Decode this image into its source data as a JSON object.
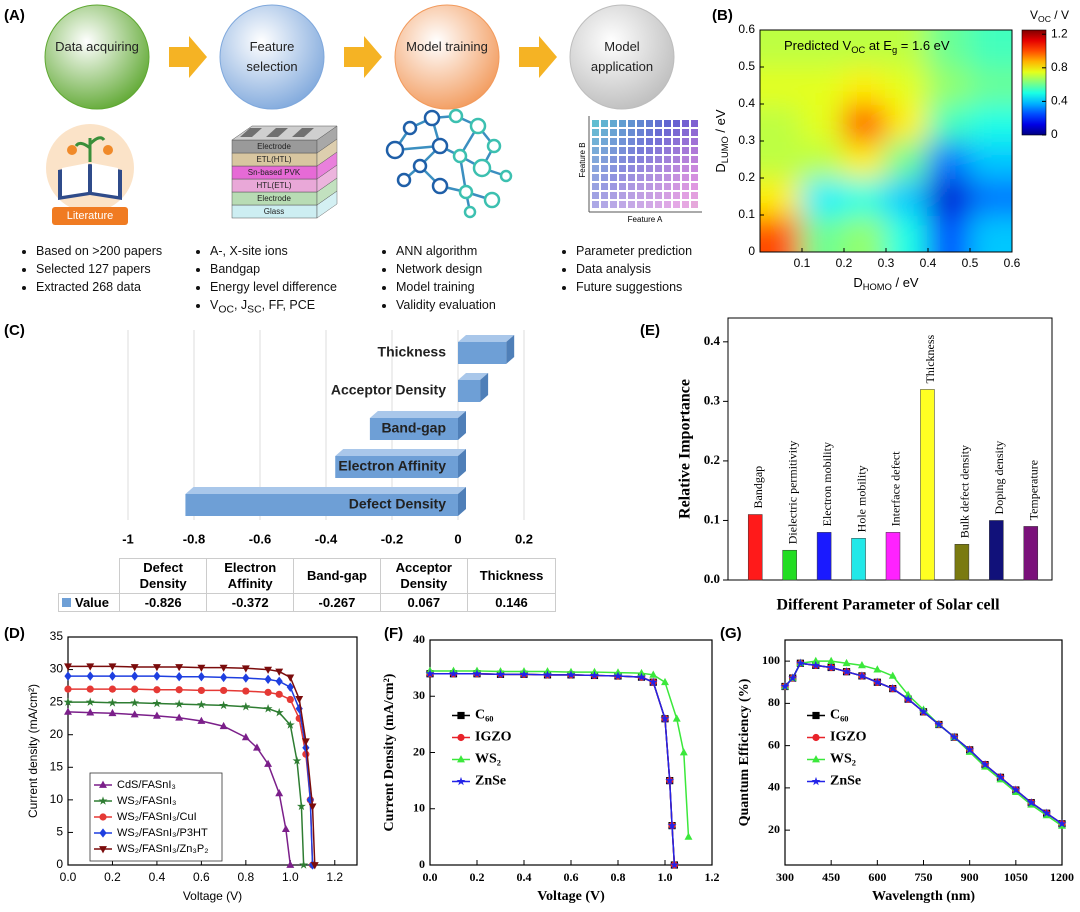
{
  "workflow": {
    "panel_label": "(A)",
    "steps": [
      {
        "title": "Data acquiring",
        "color": "#5fa832",
        "bullets": [
          [
            "Based on >200 papers"
          ],
          [
            "Selected 127 papers"
          ],
          [
            "Extracted 268 data"
          ]
        ]
      },
      {
        "title": "Feature selection",
        "color": "#7fa8dc",
        "bullets": [
          [
            "A-, X-site ions"
          ],
          [
            "Bandgap"
          ],
          [
            "Energy level difference"
          ],
          [
            "V",
            "OC",
            ", J",
            "SC",
            ", FF, PCE"
          ]
        ]
      },
      {
        "title": "Model training",
        "color": "#f29a5c",
        "bullets": [
          [
            "ANN algorithm"
          ],
          [
            "Network design"
          ],
          [
            "Model training"
          ],
          [
            "Validity evaluation"
          ]
        ]
      },
      {
        "title": "Model application",
        "color": "#bdbdbd",
        "bullets": [
          [
            "Parameter prediction"
          ],
          [
            "Data analysis"
          ],
          [
            "Future suggestions"
          ]
        ]
      }
    ],
    "literature_label": "Literature",
    "layers": [
      "Electrode",
      "ETL(HTL)",
      "Sn-based PVK",
      "HTL(ETL)",
      "Electrode",
      "Glass"
    ],
    "feature_axes": [
      "Feature A",
      "Feature B"
    ]
  },
  "chart_data": [
    {
      "panel_label": "(B)",
      "type": "heatmap",
      "title": [
        "Predicted V",
        "OC",
        " at E",
        "g",
        " = 1.6 eV"
      ],
      "xlabel": [
        "D",
        "HOMO",
        " / eV"
      ],
      "ylabel": [
        "D",
        "LUMO",
        " / eV"
      ],
      "colorbar_label": [
        "V",
        "OC",
        " / V"
      ],
      "x": [
        0.05,
        0.15,
        0.25,
        0.35,
        0.45,
        0.55
      ],
      "y": [
        0.05,
        0.15,
        0.25,
        0.35,
        0.45,
        0.55
      ],
      "z": [
        [
          1.0,
          0.6,
          0.65,
          0.5,
          0.25,
          0.4
        ],
        [
          0.8,
          0.45,
          0.5,
          0.4,
          0.1,
          0.3
        ],
        [
          0.7,
          0.7,
          0.8,
          0.6,
          0.3,
          0.4
        ],
        [
          0.7,
          0.75,
          1.0,
          0.8,
          0.55,
          0.5
        ],
        [
          0.75,
          0.75,
          0.8,
          0.75,
          0.65,
          0.6
        ],
        [
          0.7,
          0.7,
          0.7,
          0.7,
          0.6,
          0.55
        ]
      ],
      "xlim": [
        0,
        0.6
      ],
      "ylim": [
        0,
        0.6
      ],
      "xticks": [
        0.1,
        0.2,
        0.3,
        0.4,
        0.5,
        0.6
      ],
      "yticks": [
        0,
        0.1,
        0.2,
        0.3,
        0.4,
        0.5,
        0.6
      ],
      "clim": [
        0,
        1.25
      ],
      "cticks": [
        0,
        0.4,
        0.8,
        1.2
      ],
      "colormap": "jet"
    },
    {
      "panel_label": "(C)",
      "type": "hbar",
      "categories": [
        "Defect Density",
        "Electron Affinity",
        "Band-gap",
        "Acceptor Density",
        "Thickness"
      ],
      "series": [
        {
          "name": "Value",
          "color": "#6e9fd6",
          "values": [
            -0.826,
            -0.372,
            -0.267,
            0.067,
            0.146
          ]
        }
      ],
      "xlim": [
        -1,
        0.2
      ],
      "xticks": [
        -1,
        -0.8,
        -0.6,
        -0.4,
        -0.2,
        0,
        0.2
      ],
      "grid": true
    },
    {
      "panel_label": "(D)",
      "type": "line",
      "xlabel": "Voltage (V)",
      "ylabel": "Current density (mA/cm²)",
      "xlim": [
        0,
        1.3
      ],
      "ylim": [
        0,
        35
      ],
      "xticks": [
        {
          "value": 0,
          "label": "0.0"
        },
        0.2,
        0.4,
        0.6,
        0.8,
        {
          "value": 1,
          "label": "1.0"
        },
        1.2
      ],
      "yticks": [
        0,
        5,
        10,
        15,
        20,
        25,
        30,
        35
      ],
      "legend": "lower left",
      "legend_frame": true,
      "series": [
        {
          "name": "CdS/FASnI₃",
          "color": "#7b1f8a",
          "marker": "triangle",
          "x": [
            0,
            0.1,
            0.2,
            0.3,
            0.4,
            0.5,
            0.6,
            0.7,
            0.8,
            0.85,
            0.9,
            0.95,
            0.98,
            1.0
          ],
          "values": [
            23.5,
            23.4,
            23.3,
            23.1,
            22.9,
            22.6,
            22.1,
            21.3,
            19.6,
            18,
            15.5,
            11,
            5.5,
            0
          ]
        },
        {
          "name": "WS₂/FASnI₃",
          "color": "#2e7d32",
          "marker": "star",
          "x": [
            0,
            0.1,
            0.2,
            0.3,
            0.4,
            0.5,
            0.6,
            0.7,
            0.8,
            0.9,
            0.95,
            1.0,
            1.03,
            1.05,
            1.06
          ],
          "values": [
            25,
            25,
            24.9,
            24.9,
            24.8,
            24.7,
            24.6,
            24.5,
            24.3,
            24,
            23.4,
            21.5,
            16,
            9,
            0
          ]
        },
        {
          "name": "WS₂/FASnI₃/CuI",
          "color": "#e53935",
          "marker": "circle",
          "x": [
            0,
            0.1,
            0.2,
            0.3,
            0.4,
            0.5,
            0.6,
            0.7,
            0.8,
            0.9,
            0.95,
            1.0,
            1.04,
            1.07,
            1.09,
            1.1
          ],
          "values": [
            27,
            27,
            27,
            27,
            26.9,
            26.9,
            26.8,
            26.8,
            26.7,
            26.5,
            26.2,
            25.4,
            22.5,
            17,
            10,
            0
          ]
        },
        {
          "name": "WS₂/FASnI₃/P3HT",
          "color": "#1e3fe0",
          "marker": "diamond",
          "x": [
            0,
            0.1,
            0.2,
            0.3,
            0.4,
            0.5,
            0.6,
            0.7,
            0.8,
            0.9,
            0.95,
            1.0,
            1.04,
            1.07,
            1.09,
            1.1
          ],
          "values": [
            29,
            29,
            29,
            29,
            29,
            28.9,
            28.9,
            28.8,
            28.7,
            28.5,
            28.2,
            27.3,
            24,
            18,
            10,
            0
          ]
        },
        {
          "name": "WS₂/FASnI₃/Zn₃P₂",
          "color": "#7b0c0c",
          "marker": "triangle-down",
          "x": [
            0,
            0.1,
            0.2,
            0.3,
            0.4,
            0.5,
            0.6,
            0.7,
            0.8,
            0.9,
            0.95,
            1.0,
            1.04,
            1.07,
            1.1,
            1.11
          ],
          "values": [
            30.5,
            30.5,
            30.5,
            30.4,
            30.4,
            30.4,
            30.3,
            30.3,
            30.2,
            30,
            29.7,
            28.8,
            25.5,
            19,
            9,
            0
          ]
        }
      ]
    },
    {
      "panel_label": "(E)",
      "type": "bar",
      "ylabel": "Relative Importance",
      "xlabel": "Different Parameter of Solar cell",
      "categories": [
        "Bandgap",
        "Dielectric permitivity",
        "Electron mobility",
        "Hole mobility",
        "Interface defect",
        "Thickness",
        "Bulk defect density",
        "Doping density",
        "Temperature"
      ],
      "values": [
        0.11,
        0.05,
        0.08,
        0.07,
        0.08,
        0.32,
        0.06,
        0.1,
        0.09
      ],
      "colors": [
        "#ff1a1a",
        "#22dd22",
        "#1a1aff",
        "#22e8e8",
        "#ff22ff",
        "#ffff22",
        "#7a7a10",
        "#11117a",
        "#7a117a"
      ],
      "ylim": [
        0,
        0.44
      ],
      "yticks": [
        {
          "value": 0,
          "label": "0.0"
        },
        0.1,
        0.2,
        0.3,
        0.4
      ]
    },
    {
      "panel_label": "(F)",
      "type": "line",
      "xlabel": "Voltage (V)",
      "ylabel": "Current Density (mA/cm²)",
      "xlim": [
        0,
        1.2
      ],
      "ylim": [
        0,
        40
      ],
      "xticks": [
        {
          "value": 0,
          "label": "0.0"
        },
        0.2,
        0.4,
        0.6,
        0.8,
        {
          "value": 1,
          "label": "1.0"
        },
        1.2
      ],
      "yticks": [
        0,
        10,
        20,
        30,
        40
      ],
      "legend": "center left",
      "series": [
        {
          "name": "C₆₀",
          "color": "#000000",
          "marker": "square",
          "x": [
            0,
            0.1,
            0.2,
            0.3,
            0.4,
            0.5,
            0.6,
            0.7,
            0.8,
            0.9,
            0.95,
            1.0,
            1.02,
            1.03,
            1.04
          ],
          "values": [
            34,
            34,
            34,
            33.9,
            33.9,
            33.8,
            33.8,
            33.7,
            33.6,
            33.4,
            32.5,
            26,
            15,
            7,
            0
          ]
        },
        {
          "name": "IGZO",
          "color": "#e8232a",
          "marker": "circle",
          "x": [
            0,
            0.1,
            0.2,
            0.3,
            0.4,
            0.5,
            0.6,
            0.7,
            0.8,
            0.9,
            0.95,
            1.0,
            1.02,
            1.03,
            1.04
          ],
          "values": [
            34,
            34,
            34,
            33.9,
            33.9,
            33.8,
            33.8,
            33.7,
            33.6,
            33.4,
            32.5,
            26,
            15,
            7,
            0
          ]
        },
        {
          "name": "WS₂",
          "color": "#3be83b",
          "marker": "triangle",
          "x": [
            0,
            0.1,
            0.2,
            0.3,
            0.4,
            0.5,
            0.6,
            0.7,
            0.8,
            0.9,
            0.95,
            1.0,
            1.05,
            1.08,
            1.1
          ],
          "values": [
            34.5,
            34.5,
            34.5,
            34.4,
            34.4,
            34.4,
            34.3,
            34.3,
            34.2,
            34.1,
            33.8,
            32.5,
            26,
            20,
            5
          ]
        },
        {
          "name": "ZnSe",
          "color": "#2323e8",
          "marker": "star",
          "x": [
            0,
            0.1,
            0.2,
            0.3,
            0.4,
            0.5,
            0.6,
            0.7,
            0.8,
            0.9,
            0.95,
            1.0,
            1.02,
            1.03,
            1.04
          ],
          "values": [
            34,
            34,
            34,
            33.9,
            33.9,
            33.8,
            33.8,
            33.7,
            33.6,
            33.4,
            32.5,
            26,
            15,
            7,
            0
          ]
        }
      ]
    },
    {
      "panel_label": "(G)",
      "type": "line",
      "xlabel": "Wavelength (nm)",
      "ylabel": "Quantum Efficiency (%)",
      "xlim": [
        300,
        1200
      ],
      "ylim": [
        3.5,
        110
      ],
      "xticks": [
        300,
        450,
        600,
        750,
        900,
        1050,
        1200
      ],
      "yticks": [
        20,
        40,
        60,
        80,
        100
      ],
      "legend": "center left",
      "series": [
        {
          "name": "C₆₀",
          "color": "#000000",
          "marker": "square",
          "x": [
            300,
            325,
            350,
            400,
            450,
            500,
            550,
            600,
            650,
            700,
            750,
            800,
            850,
            900,
            950,
            1000,
            1050,
            1100,
            1150,
            1200
          ],
          "values": [
            88,
            92,
            99,
            98,
            97,
            95,
            93,
            90,
            87,
            82,
            76,
            70,
            64,
            58,
            51,
            45,
            39,
            33,
            28,
            23
          ]
        },
        {
          "name": "IGZO",
          "color": "#e8232a",
          "marker": "circle",
          "x": [
            300,
            325,
            350,
            400,
            450,
            500,
            550,
            600,
            650,
            700,
            750,
            800,
            850,
            900,
            950,
            1000,
            1050,
            1100,
            1150,
            1200
          ],
          "values": [
            88,
            92,
            99,
            98,
            97,
            95,
            93,
            90,
            87,
            82,
            76,
            70,
            64,
            58,
            51,
            45,
            39,
            33,
            28,
            23
          ]
        },
        {
          "name": "WS₂",
          "color": "#3be83b",
          "marker": "triangle",
          "x": [
            300,
            325,
            350,
            400,
            450,
            500,
            550,
            600,
            650,
            700,
            750,
            800,
            850,
            900,
            950,
            1000,
            1050,
            1100,
            1150,
            1200
          ],
          "values": [
            88,
            92,
            99,
            100,
            100,
            99,
            98,
            96,
            93,
            84,
            77,
            70,
            64,
            57,
            50,
            44,
            38,
            32,
            27,
            22
          ]
        },
        {
          "name": "ZnSe",
          "color": "#2323e8",
          "marker": "star",
          "x": [
            300,
            325,
            350,
            400,
            450,
            500,
            550,
            600,
            650,
            700,
            750,
            800,
            850,
            900,
            950,
            1000,
            1050,
            1100,
            1150,
            1200
          ],
          "values": [
            88,
            92,
            99,
            98,
            97,
            95,
            93,
            90,
            87,
            82,
            76,
            70,
            64,
            58,
            51,
            45,
            39,
            33,
            28,
            23
          ]
        }
      ]
    }
  ]
}
